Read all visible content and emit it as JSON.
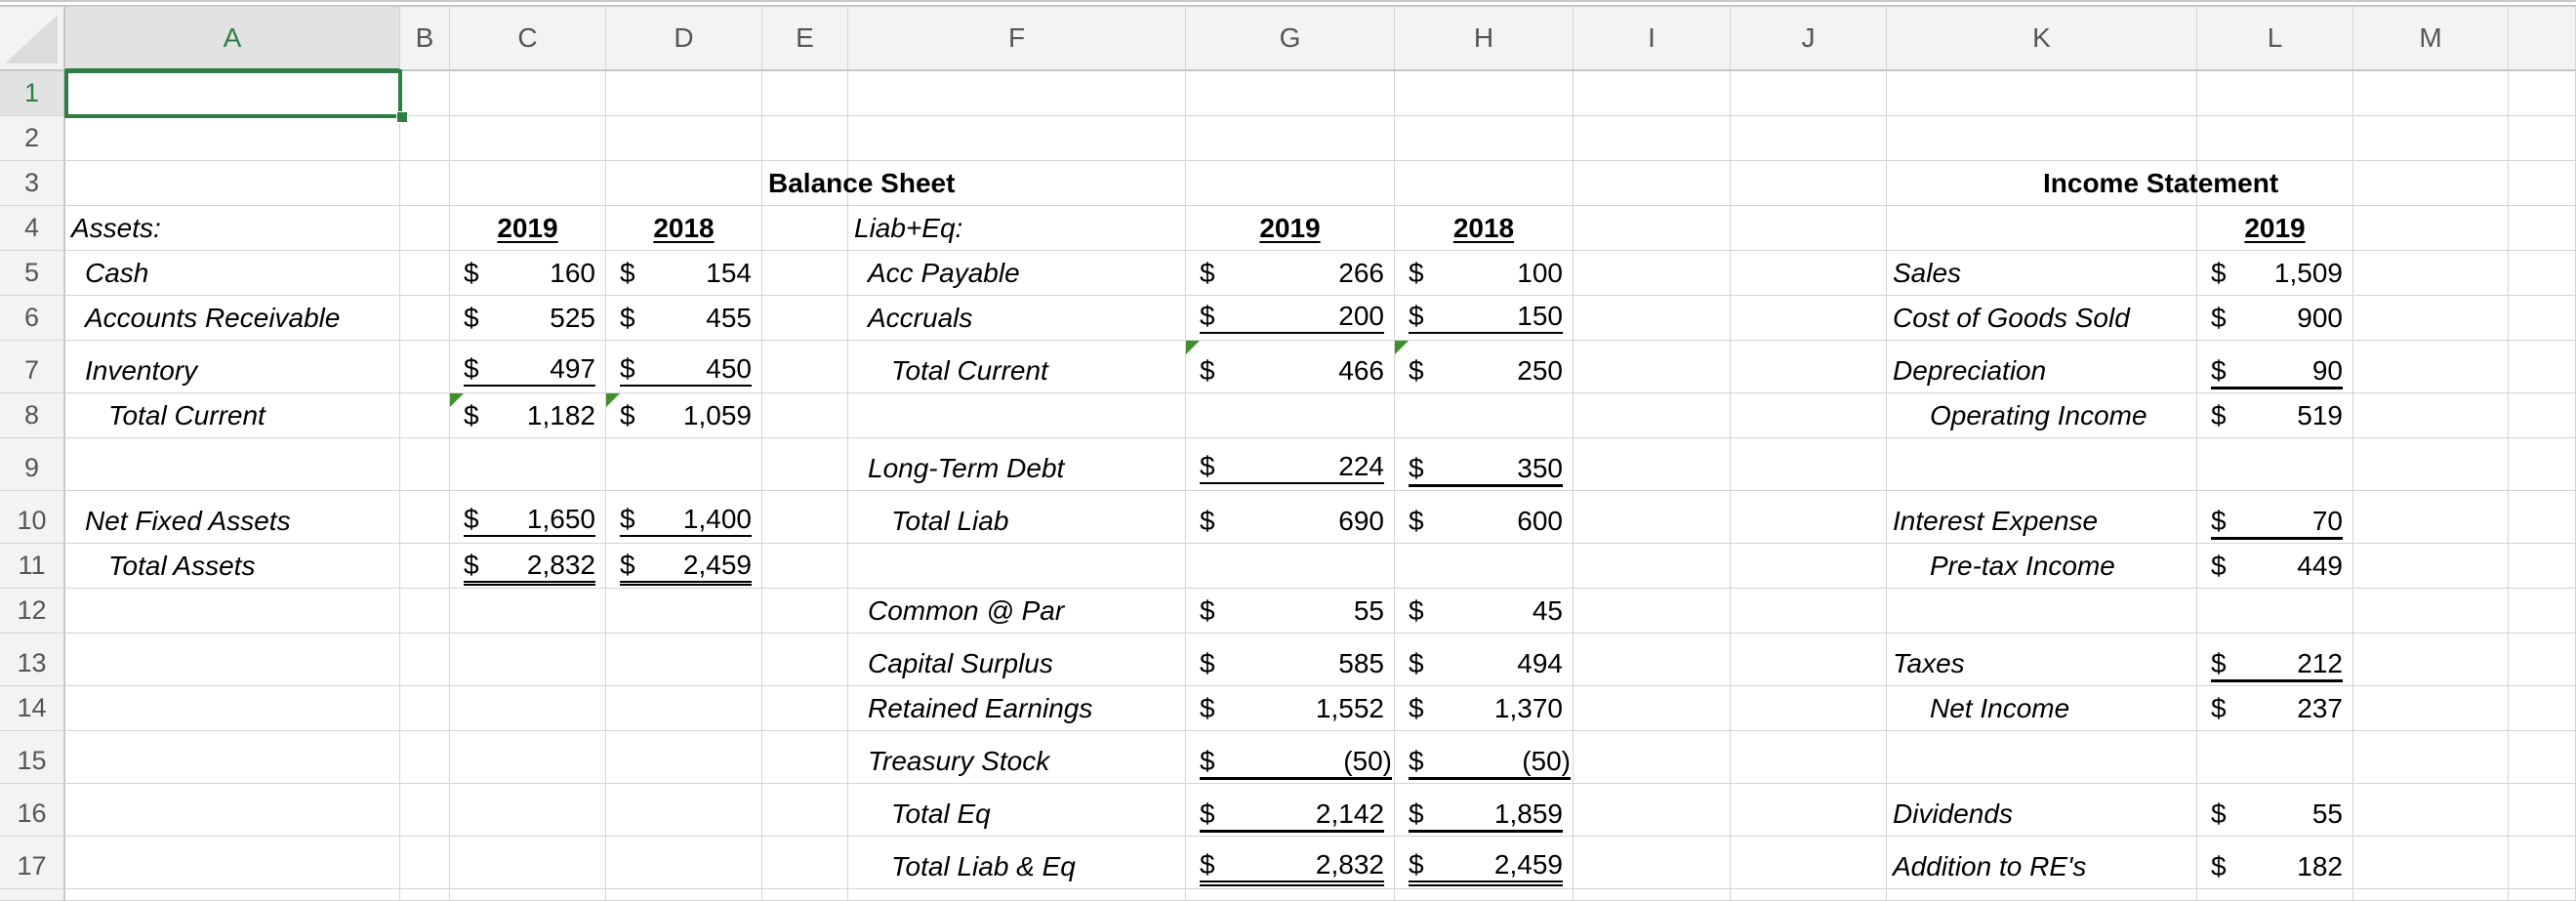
{
  "columns": [
    "A",
    "B",
    "C",
    "D",
    "E",
    "F",
    "G",
    "H",
    "I",
    "J",
    "K",
    "L",
    "M",
    ""
  ],
  "rows": [
    "1",
    "2",
    "3",
    "4",
    "5",
    "6",
    "7",
    "8",
    "9",
    "10",
    "11",
    "12",
    "13",
    "14",
    "15",
    "16",
    "17",
    ""
  ],
  "selected_cell": "A1",
  "accent_color": "#2e7d45",
  "cells": {
    "A4": "Assets:",
    "A5": "Cash",
    "A6": "Accounts Receivable",
    "A7": "Inventory",
    "A8": "Total Current",
    "A10": "Net Fixed Assets",
    "A11": "Total Assets",
    "C4": "2019",
    "D4": "2018",
    "E3": "Balance Sheet",
    "F4": "Liab+Eq:",
    "F5": "Acc Payable",
    "F6": "Accruals",
    "F7": "Total Current",
    "F9": "Long-Term Debt",
    "F10": "Total Liab",
    "F12": "Common @ Par",
    "F13": "Capital Surplus",
    "F14": "Retained Earnings",
    "F15": "Treasury Stock",
    "F16": "Total Eq",
    "F17": "Total Liab & Eq",
    "G4": "2019",
    "H4": "2018",
    "K3": "Income Statement",
    "L4": "2019",
    "K5": "Sales",
    "K6": "Cost of Goods Sold",
    "K7": "Depreciation",
    "K8": "Operating Income",
    "K10": "Interest Expense",
    "K11": "Pre-tax Income",
    "K13": "Taxes",
    "K14": "Net Income",
    "K16": "Dividends",
    "K17": "Addition to RE's"
  },
  "currency_symbol": "$",
  "money": {
    "C5": "160",
    "D5": "154",
    "C6": "525",
    "D6": "455",
    "C7": "497",
    "D7": "450",
    "C8": "1,182",
    "D8": "1,059",
    "C10": "1,650",
    "D10": "1,400",
    "C11": "2,832",
    "D11": "2,459",
    "G5": "266",
    "H5": "100",
    "G6": "200",
    "H6": "150",
    "G7": "466",
    "H7": "250",
    "G9": "224",
    "H9": "350",
    "G10": "690",
    "H10": "600",
    "G12": "55",
    "H12": "45",
    "G13": "585",
    "H13": "494",
    "G14": "1,552",
    "H14": "1,370",
    "G15": "(50)",
    "H15": "(50)",
    "G16": "2,142",
    "H16": "1,859",
    "G17": "2,832",
    "H17": "2,459",
    "L5": "1,509",
    "L6": "900",
    "L7": "90",
    "L8": "519",
    "L10": "70",
    "L11": "449",
    "L13": "212",
    "L14": "237",
    "L16": "55",
    "L17": "182"
  },
  "error_indicator_cells": [
    "C8",
    "D8",
    "G7",
    "H7"
  ]
}
